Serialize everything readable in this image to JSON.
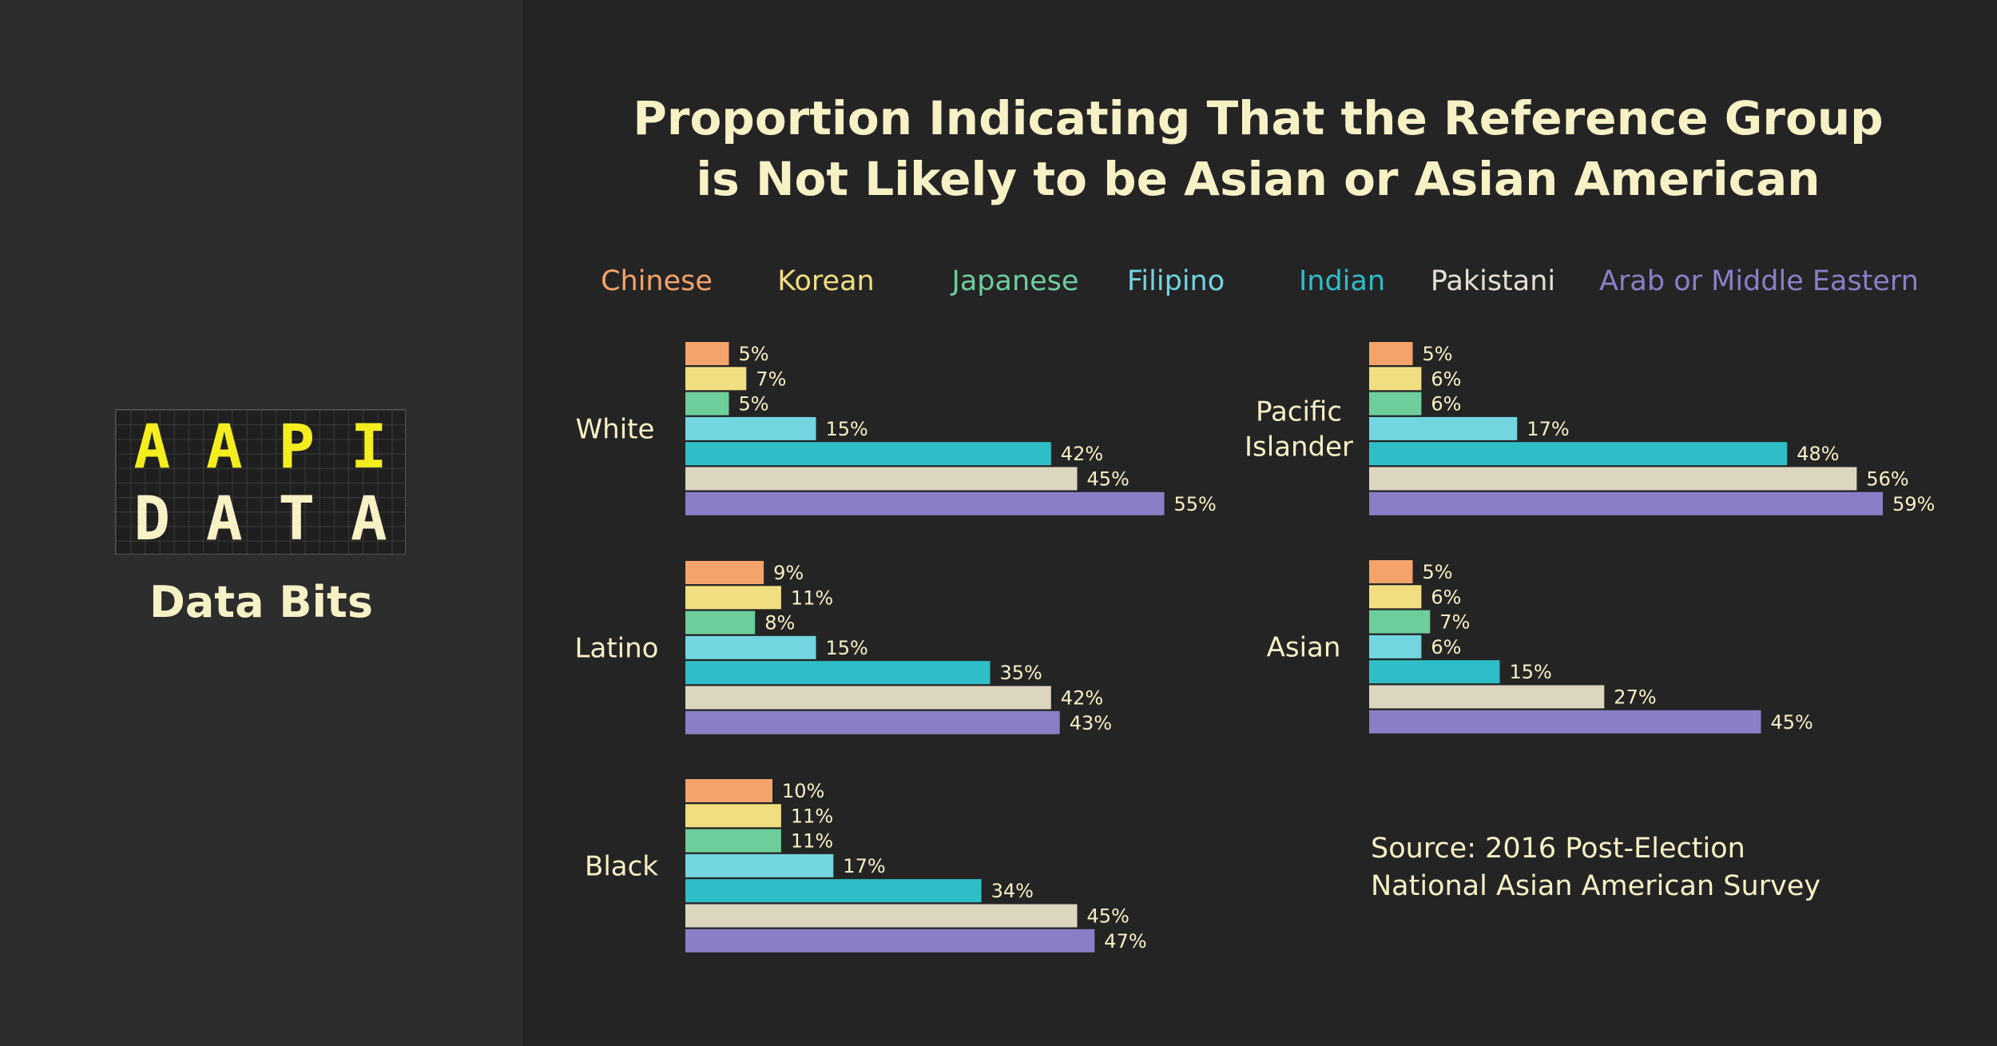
{
  "brand": {
    "logo_line_1": [
      "A",
      "A",
      "P",
      "I"
    ],
    "logo_line_2": [
      "D",
      "A",
      "T",
      "A"
    ],
    "subtitle": "Data Bits"
  },
  "chart_data": {
    "type": "bar",
    "orientation": "horizontal",
    "title_lines": [
      "Proportion Indicating That the Reference Group",
      "is Not Likely to be Asian or Asian American"
    ],
    "series": [
      {
        "name": "Chinese",
        "color": "#f4a46a"
      },
      {
        "name": "Korean",
        "color": "#f1de80"
      },
      {
        "name": "Japanese",
        "color": "#6dce9c"
      },
      {
        "name": "Filipino",
        "color": "#72d5e0"
      },
      {
        "name": "Indian",
        "color": "#2fbec8"
      },
      {
        "name": "Pakistani",
        "color": "#dcd6c0"
      },
      {
        "name": "Arab or Middle Eastern",
        "color": "#8a7fc6"
      }
    ],
    "groups": [
      {
        "label_lines": [
          "White"
        ],
        "values": [
          5,
          7,
          5,
          15,
          42,
          45,
          55
        ]
      },
      {
        "label_lines": [
          "Latino"
        ],
        "values": [
          9,
          11,
          8,
          15,
          35,
          42,
          43
        ]
      },
      {
        "label_lines": [
          "Black"
        ],
        "values": [
          10,
          11,
          11,
          17,
          34,
          45,
          47
        ]
      },
      {
        "label_lines": [
          "Pacific",
          "Islander"
        ],
        "values": [
          5,
          6,
          6,
          17,
          48,
          56,
          59
        ]
      },
      {
        "label_lines": [
          "Asian"
        ],
        "values": [
          5,
          6,
          7,
          6,
          15,
          27,
          45
        ]
      }
    ],
    "value_suffix": "%",
    "legend_placement": "top",
    "grid": false
  },
  "source": {
    "lines": [
      "Source: 2016 Post-Election",
      "National Asian American Survey"
    ]
  },
  "colors": {
    "background": "#252425",
    "sidebar": "#2d2d2d",
    "text": "#f7f1c6",
    "logo_accent": "#f5ee1f"
  }
}
